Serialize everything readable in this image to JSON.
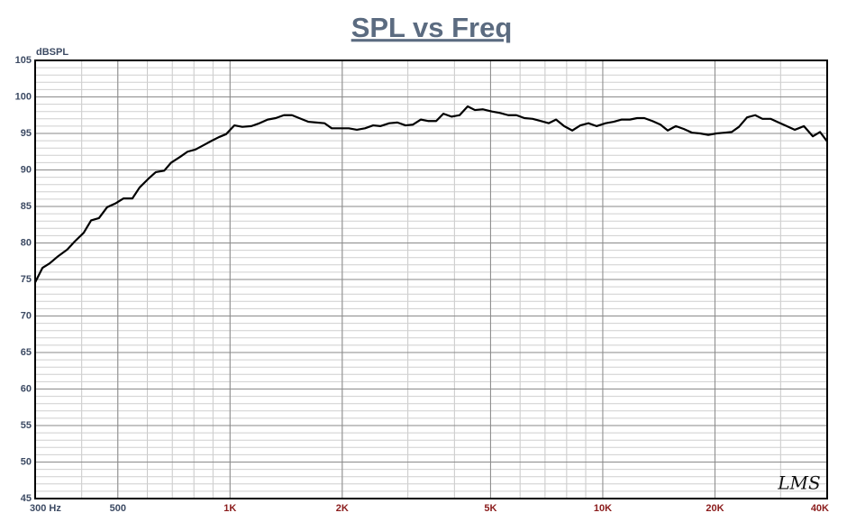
{
  "chart_data": {
    "type": "line",
    "title": "SPL vs Freq",
    "y_label": "dBSPL",
    "annotation": "LMS",
    "log_x": true,
    "grid": true,
    "color": "#000000",
    "xlim": [
      300,
      40000
    ],
    "ylim": [
      45,
      105
    ],
    "xticks": [
      {
        "value": 300,
        "label": "300  Hz"
      },
      500,
      {
        "value": 1000,
        "label": "1K"
      },
      {
        "value": 2000,
        "label": "2K"
      },
      {
        "value": 5000,
        "label": "5K"
      },
      {
        "value": 10000,
        "label": "10K"
      },
      {
        "value": 20000,
        "label": "20K"
      },
      {
        "value": 40000,
        "label": "40K"
      }
    ],
    "xtick_colors": [
      "#3c4a63",
      "#3c4a63",
      "#8b1c1c",
      "#8b1c1c",
      "#8b1c1c",
      "#8b1c1c",
      "#8b1c1c",
      "#8b1c1c"
    ],
    "yticks": [
      45,
      50,
      55,
      60,
      65,
      70,
      75,
      80,
      85,
      90,
      95,
      100,
      105
    ],
    "x": [
      300,
      314,
      328,
      346,
      366,
      383,
      405,
      424,
      445,
      468,
      492,
      518,
      547,
      572,
      604,
      632,
      666,
      695,
      735,
      769,
      808,
      850,
      893,
      934,
      976,
      1027,
      1079,
      1141,
      1200,
      1262,
      1326,
      1395,
      1466,
      1533,
      1621,
      1704,
      1792,
      1874,
      1980,
      2082,
      2189,
      2302,
      2421,
      2530,
      2675,
      2812,
      2957,
      3092,
      3251,
      3398,
      3573,
      3736,
      3928,
      4129,
      4341,
      4539,
      4772,
      5044,
      5303,
      5576,
      5864,
      6165,
      6482,
      6815,
      7165,
      7493,
      7877,
      8282,
      8707,
      9154,
      9623,
      10176,
      10698,
      11246,
      11824,
      12367,
      12925,
      13588,
      14286,
      14938,
      15705,
      16511,
      17358,
      18249,
      19193,
      20180,
      21215,
      22182,
      23194,
      24385,
      25636,
      26816,
      28192,
      29637,
      31158,
      32755,
      34640,
      36610,
      38270,
      40000
    ],
    "values": [
      74.6,
      76.6,
      77.2,
      78.2,
      79.1,
      80.2,
      81.4,
      83.1,
      83.4,
      84.9,
      85.4,
      86.1,
      86.1,
      87.6,
      88.8,
      89.7,
      89.9,
      91.0,
      91.8,
      92.5,
      92.8,
      93.4,
      94.0,
      94.5,
      94.9,
      96.1,
      95.9,
      96.0,
      96.4,
      96.9,
      97.1,
      97.5,
      97.5,
      97.1,
      96.6,
      96.5,
      96.4,
      95.7,
      95.7,
      95.7,
      95.5,
      95.7,
      96.1,
      96.0,
      96.4,
      96.5,
      96.1,
      96.2,
      96.9,
      96.7,
      96.7,
      97.7,
      97.3,
      97.5,
      98.7,
      98.2,
      98.3,
      98.0,
      97.8,
      97.5,
      97.5,
      97.1,
      97.0,
      96.7,
      96.4,
      96.9,
      96.0,
      95.4,
      96.1,
      96.4,
      96.0,
      96.4,
      96.6,
      96.9,
      96.9,
      97.1,
      97.1,
      96.7,
      96.2,
      95.4,
      96.0,
      95.6,
      95.1,
      95.0,
      94.8,
      95.0,
      95.1,
      95.2,
      95.9,
      97.2,
      97.5,
      97.0,
      97.0,
      96.5,
      96.0,
      95.5,
      96.0,
      94.6,
      95.2,
      93.9
    ]
  }
}
